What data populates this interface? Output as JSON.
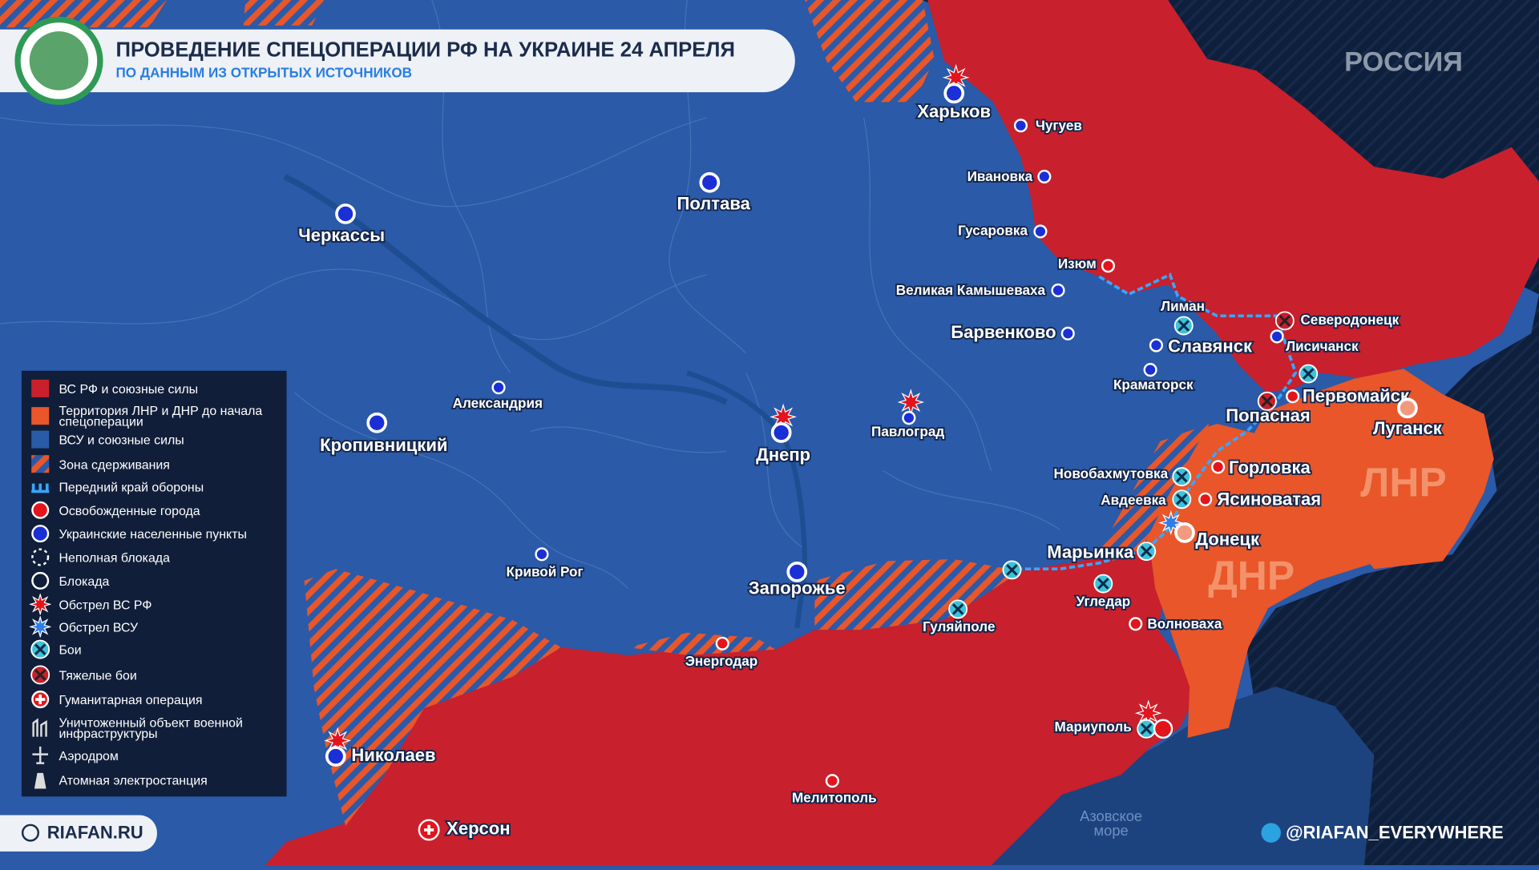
{
  "header": {
    "title": "ПРОВЕДЕНИЕ СПЕЦОПЕРАЦИИ РФ НА УКРАИНЕ 24 АПРЕЛЯ",
    "subtitle": "ПО ДАННЫМ ИЗ ОТКРЫТЫХ ИСТОЧНИКОВ"
  },
  "region_labels": [
    "РОССИЯ",
    "ЛНР",
    "ДНР"
  ],
  "sea_label": [
    "Азовское",
    "море"
  ],
  "cities": [
    "Харьков",
    "Чугуев",
    "Ивановка",
    "Гусаровка",
    "Изюм",
    "Великая Камышеваха",
    "Барвенково",
    "Лиман",
    "Славянск",
    "Северодонецк",
    "Лисичанск",
    "Краматорск",
    "Первомайск",
    "Попасная",
    "Луганск",
    "Горловка",
    "Новобахмутовка",
    "Авдеевка",
    "Ясиноватая",
    "Донецк",
    "Марьинка",
    "Угледар",
    "Волноваха",
    "Гуляйполе",
    "Запорожье",
    "Энергодар",
    "Мариуполь",
    "Мелитополь",
    "Херсон",
    "Николаев",
    "Кривой Рог",
    "Днепр",
    "Павлоград",
    "Александрия",
    "Кропивницкий",
    "Черкассы",
    "Полтава"
  ],
  "legend": [
    "ВС РФ и союзные силы",
    "Территория ЛНР и ДНР до начала спецоперации",
    "ВСУ и союзные силы",
    "Зона сдерживания",
    "Передний край обороны",
    "Освобожденные города",
    "Украинские населенные пункты",
    "Неполная блокада",
    "Блокада",
    "Обстрел ВС РФ",
    "Обстрел ВСУ",
    "Бои",
    "Тяжелые бои",
    "Гуманитарная операция",
    "Уничтоженный объект военной инфраструктуры",
    "Аэродром",
    "Атомная электростанция"
  ],
  "footer": {
    "site": "RIAFAN.RU",
    "telegram": "@RIAFAN_EVERYWHERE"
  }
}
